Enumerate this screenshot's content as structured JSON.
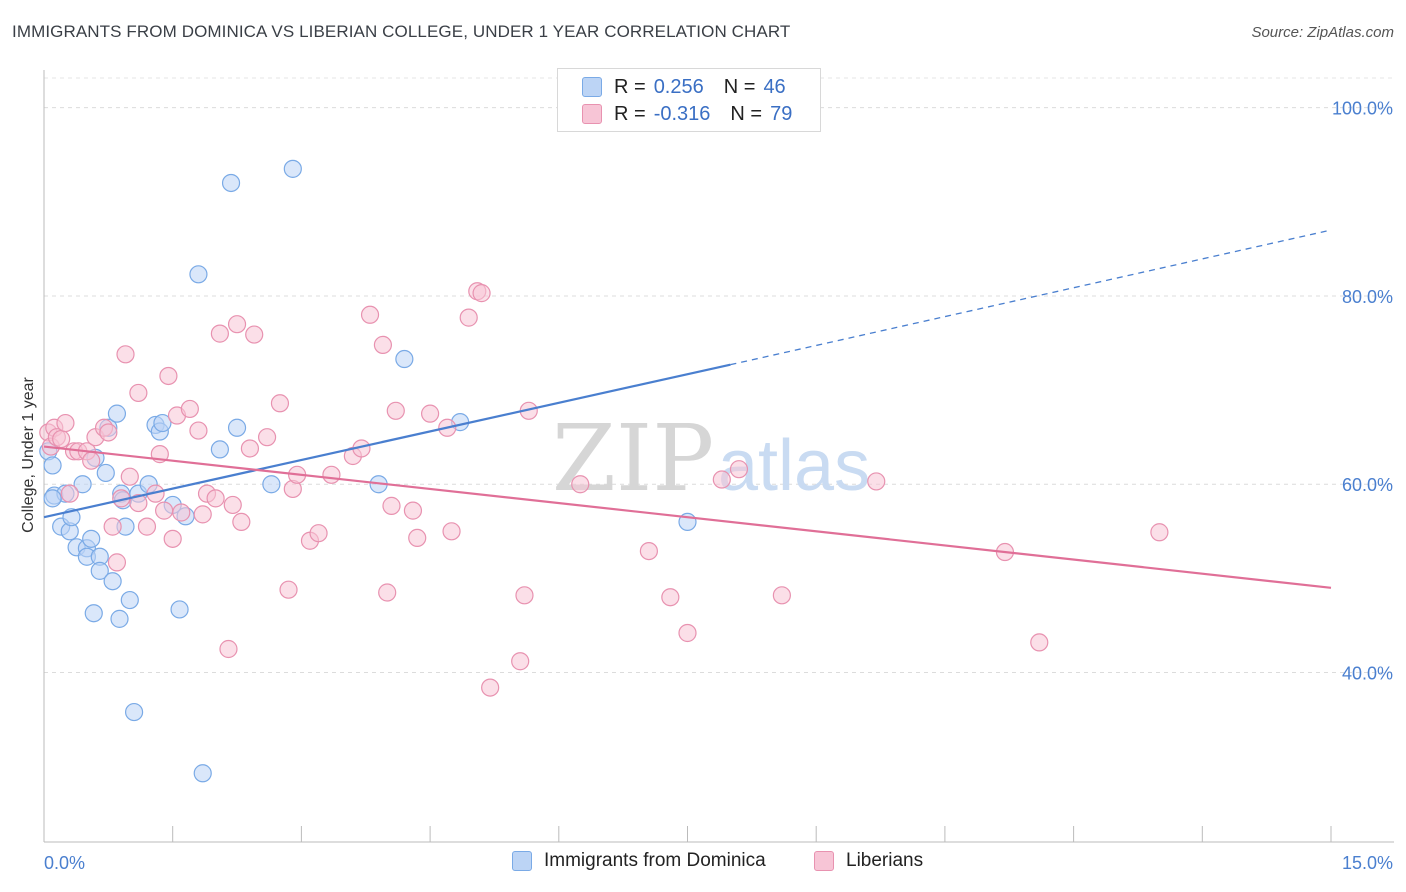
{
  "header": {
    "title": "IMMIGRANTS FROM DOMINICA VS LIBERIAN COLLEGE, UNDER 1 YEAR CORRELATION CHART",
    "source": "Source: ZipAtlas.com"
  },
  "watermark": {
    "zip": "ZIP",
    "atlas": "atlas"
  },
  "legend": {
    "r_label": "R =",
    "n_label": "N =",
    "rows": [
      {
        "r": "0.256",
        "n": "46",
        "color": "#7aaae6",
        "fill": "#bcd4f5"
      },
      {
        "r": "-0.316",
        "n": "79",
        "color": "#e892b0",
        "fill": "#f7c5d6"
      }
    ]
  },
  "bottom_legend": {
    "items": [
      {
        "label": "Immigrants from Dominica",
        "fill": "#bcd4f5",
        "color": "#7aaae6"
      },
      {
        "label": "Liberians",
        "fill": "#f7c5d6",
        "color": "#e892b0"
      }
    ]
  },
  "chart_data": {
    "type": "scatter",
    "ylabel": "College, Under 1 year",
    "xlim": [
      0,
      15
    ],
    "ylim": [
      22,
      104
    ],
    "x_tick_labels": [
      {
        "value": 0,
        "label": "0.0%"
      },
      {
        "value": 15,
        "label": "15.0%"
      }
    ],
    "y_ticks": [
      {
        "value": 40,
        "label": "40.0%"
      },
      {
        "value": 60,
        "label": "60.0%"
      },
      {
        "value": 80,
        "label": "80.0%"
      },
      {
        "value": 100,
        "label": "100.0%"
      }
    ],
    "grid": "horizontal dashed",
    "legend_position": "top-center",
    "series": [
      {
        "name": "Immigrants from Dominica",
        "color": "#4a7fcf",
        "marker_fill": "#bcd4f5",
        "marker_stroke": "#7aaae6",
        "trend": {
          "x0": 0,
          "y0": 56.5,
          "x1": 8.0,
          "y1": 72.7,
          "dash_to_x": 15,
          "dash_to_y": 87.0
        },
        "points": [
          [
            0.05,
            63.5
          ],
          [
            0.1,
            62.0
          ],
          [
            0.12,
            58.8
          ],
          [
            0.25,
            59.0
          ],
          [
            0.2,
            55.5
          ],
          [
            0.3,
            55.0
          ],
          [
            0.32,
            56.5
          ],
          [
            0.38,
            53.3
          ],
          [
            0.45,
            60.0
          ],
          [
            0.5,
            53.2
          ],
          [
            0.55,
            54.2
          ],
          [
            0.5,
            52.3
          ],
          [
            0.6,
            62.8
          ],
          [
            0.65,
            52.3
          ],
          [
            0.58,
            46.3
          ],
          [
            0.65,
            50.8
          ],
          [
            0.75,
            66.0
          ],
          [
            0.72,
            61.2
          ],
          [
            0.8,
            49.7
          ],
          [
            0.85,
            67.5
          ],
          [
            0.88,
            45.7
          ],
          [
            0.9,
            59.0
          ],
          [
            0.92,
            58.3
          ],
          [
            0.95,
            55.5
          ],
          [
            1.0,
            47.7
          ],
          [
            1.05,
            35.8
          ],
          [
            1.1,
            59.0
          ],
          [
            1.22,
            60.0
          ],
          [
            1.3,
            66.3
          ],
          [
            1.35,
            65.6
          ],
          [
            1.38,
            66.5
          ],
          [
            1.5,
            57.8
          ],
          [
            1.58,
            46.7
          ],
          [
            1.65,
            56.6
          ],
          [
            1.8,
            82.3
          ],
          [
            1.85,
            29.3
          ],
          [
            2.05,
            63.7
          ],
          [
            2.18,
            92.0
          ],
          [
            2.25,
            66.0
          ],
          [
            2.65,
            60.0
          ],
          [
            2.9,
            93.5
          ],
          [
            3.9,
            60.0
          ],
          [
            4.2,
            73.3
          ],
          [
            4.85,
            66.6
          ],
          [
            7.5,
            56.0
          ],
          [
            0.1,
            58.5
          ]
        ]
      },
      {
        "name": "Liberians",
        "color": "#e06f97",
        "marker_fill": "#f7c5d6",
        "marker_stroke": "#e892b0",
        "trend": {
          "x0": 0,
          "y0": 64.0,
          "x1": 15,
          "y1": 49.0
        },
        "points": [
          [
            0.05,
            65.5
          ],
          [
            0.08,
            64.0
          ],
          [
            0.12,
            66.0
          ],
          [
            0.15,
            65.0
          ],
          [
            0.2,
            64.8
          ],
          [
            0.25,
            66.5
          ],
          [
            0.3,
            59.0
          ],
          [
            0.35,
            63.5
          ],
          [
            0.4,
            63.5
          ],
          [
            0.5,
            63.5
          ],
          [
            0.55,
            62.5
          ],
          [
            0.6,
            65.0
          ],
          [
            0.7,
            66.0
          ],
          [
            0.75,
            65.5
          ],
          [
            0.8,
            55.5
          ],
          [
            0.85,
            51.7
          ],
          [
            0.9,
            58.5
          ],
          [
            0.95,
            73.8
          ],
          [
            1.0,
            60.8
          ],
          [
            1.1,
            58.0
          ],
          [
            1.1,
            69.7
          ],
          [
            1.2,
            55.5
          ],
          [
            1.3,
            59.0
          ],
          [
            1.35,
            63.2
          ],
          [
            1.4,
            57.2
          ],
          [
            1.45,
            71.5
          ],
          [
            1.5,
            54.2
          ],
          [
            1.55,
            67.3
          ],
          [
            1.6,
            57.0
          ],
          [
            1.7,
            68.0
          ],
          [
            1.8,
            65.7
          ],
          [
            1.85,
            56.8
          ],
          [
            1.9,
            59.0
          ],
          [
            2.0,
            58.5
          ],
          [
            2.05,
            76.0
          ],
          [
            2.15,
            42.5
          ],
          [
            2.2,
            57.8
          ],
          [
            2.25,
            77.0
          ],
          [
            2.3,
            56.0
          ],
          [
            2.4,
            63.8
          ],
          [
            2.45,
            75.9
          ],
          [
            2.6,
            65.0
          ],
          [
            2.75,
            68.6
          ],
          [
            2.85,
            48.8
          ],
          [
            2.9,
            59.5
          ],
          [
            2.95,
            61.0
          ],
          [
            3.1,
            54.0
          ],
          [
            3.2,
            54.8
          ],
          [
            3.35,
            61.0
          ],
          [
            3.6,
            63.0
          ],
          [
            3.7,
            63.8
          ],
          [
            3.8,
            78.0
          ],
          [
            3.95,
            74.8
          ],
          [
            4.0,
            48.5
          ],
          [
            4.05,
            57.7
          ],
          [
            4.1,
            67.8
          ],
          [
            4.3,
            57.2
          ],
          [
            4.35,
            54.3
          ],
          [
            4.5,
            67.5
          ],
          [
            4.7,
            66.0
          ],
          [
            4.75,
            55.0
          ],
          [
            4.95,
            77.7
          ],
          [
            5.05,
            80.5
          ],
          [
            5.1,
            80.3
          ],
          [
            5.2,
            38.4
          ],
          [
            5.55,
            41.2
          ],
          [
            5.6,
            48.2
          ],
          [
            5.65,
            67.8
          ],
          [
            6.25,
            60.0
          ],
          [
            7.05,
            52.9
          ],
          [
            7.3,
            48.0
          ],
          [
            7.5,
            44.2
          ],
          [
            7.9,
            60.5
          ],
          [
            8.1,
            61.6
          ],
          [
            8.6,
            48.2
          ],
          [
            9.7,
            60.3
          ],
          [
            11.2,
            52.8
          ],
          [
            11.6,
            43.2
          ],
          [
            13.0,
            54.9
          ]
        ]
      }
    ]
  }
}
